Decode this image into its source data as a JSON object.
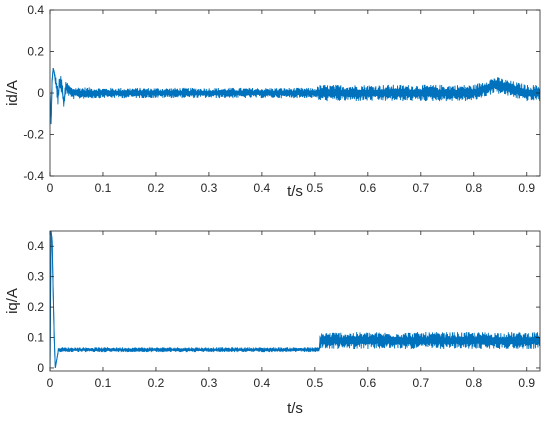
{
  "chart_data": [
    {
      "type": "line",
      "title": "",
      "xlabel": "t/s",
      "ylabel": "id/A",
      "xlim": [
        0,
        0.925
      ],
      "ylim": [
        -0.4,
        0.4
      ],
      "xticks": [
        "0",
        "0.1",
        "0.2",
        "0.3",
        "0.4",
        "0.5",
        "0.6",
        "0.7",
        "0.8",
        "0.9"
      ],
      "yticks": [
        "-0.4",
        "-0.2",
        "0",
        "0.2",
        "0.4"
      ],
      "grid": false,
      "color": "#0072BD",
      "series": [
        {
          "x": [
            0,
            0.002,
            0.004,
            0.006,
            0.008,
            0.01,
            0.012,
            0.015,
            0.018,
            0.022,
            0.026,
            0.03,
            0.04,
            0.1,
            0.2,
            0.3,
            0.4,
            0.5,
            0.51,
            0.6,
            0.7,
            0.8,
            0.84,
            0.9,
            0.925
          ],
          "y": [
            0.0,
            -0.15,
            0.06,
            0.12,
            0.1,
            0.06,
            0.04,
            -0.02,
            0.05,
            0.04,
            -0.05,
            0.03,
            0.0,
            0.0,
            0.0,
            0.0,
            0.0,
            0.0,
            0.0,
            0.0,
            0.0,
            0.0,
            0.04,
            0.0,
            0.0
          ],
          "band_halfwidth": [
            0.0,
            0.0,
            0.0,
            0.0,
            0.0,
            0.03,
            0.04,
            0.04,
            0.04,
            0.04,
            0.03,
            0.03,
            0.03,
            0.025,
            0.025,
            0.025,
            0.025,
            0.025,
            0.04,
            0.04,
            0.04,
            0.04,
            0.04,
            0.04,
            0.04
          ]
        }
      ]
    },
    {
      "type": "line",
      "title": "",
      "xlabel": "t/s",
      "ylabel": "iq/A",
      "xlim": [
        0,
        0.925
      ],
      "ylim": [
        -0.01,
        0.45
      ],
      "xticks": [
        "0",
        "0.1",
        "0.2",
        "0.3",
        "0.4",
        "0.5",
        "0.6",
        "0.7",
        "0.8",
        "0.9"
      ],
      "yticks": [
        "0",
        "0.1",
        "0.2",
        "0.3",
        "0.4"
      ],
      "grid": false,
      "color": "#0072BD",
      "series": [
        {
          "x": [
            0,
            0.002,
            0.004,
            0.006,
            0.008,
            0.01,
            0.013,
            0.016,
            0.1,
            0.2,
            0.3,
            0.4,
            0.5,
            0.508,
            0.51,
            0.6,
            0.7,
            0.8,
            0.9,
            0.925
          ],
          "y": [
            0.0,
            0.45,
            0.42,
            0.25,
            0.1,
            0.0,
            0.03,
            0.06,
            0.06,
            0.06,
            0.06,
            0.06,
            0.06,
            0.06,
            0.09,
            0.09,
            0.09,
            0.09,
            0.09,
            0.09
          ],
          "band_halfwidth": [
            0.0,
            0.0,
            0.0,
            0.0,
            0.0,
            0.0,
            0.0,
            0.008,
            0.008,
            0.008,
            0.008,
            0.008,
            0.008,
            0.008,
            0.028,
            0.028,
            0.028,
            0.028,
            0.028,
            0.028
          ]
        }
      ]
    }
  ]
}
